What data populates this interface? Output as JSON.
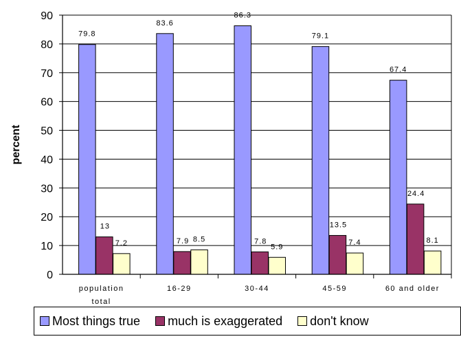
{
  "chart_data": {
    "type": "bar",
    "title": "",
    "xlabel": "",
    "ylabel": "percent",
    "ylim": [
      0,
      90
    ],
    "yticks": [
      0,
      10,
      20,
      30,
      40,
      50,
      60,
      70,
      80,
      90
    ],
    "grid": true,
    "legend_position": "bottom",
    "categories": [
      [
        "population",
        "total"
      ],
      [
        "16-29"
      ],
      [
        "30-44"
      ],
      [
        "45-59"
      ],
      [
        "60 and older"
      ]
    ],
    "series": [
      {
        "name": "Most things true",
        "color": "#9999ff",
        "values": [
          79.8,
          83.6,
          86.3,
          79.1,
          67.4
        ],
        "labels": [
          "79.8",
          "83.6",
          "86.3",
          "79.1",
          "67.4"
        ]
      },
      {
        "name": "much is exaggerated",
        "color": "#993366",
        "values": [
          13,
          7.9,
          7.8,
          13.5,
          24.4
        ],
        "labels": [
          "13",
          "7.9",
          "7.8",
          "13.5",
          "24.4"
        ]
      },
      {
        "name": "don't know",
        "color": "#ffffcc",
        "values": [
          7.2,
          8.5,
          5.9,
          7.4,
          8.1
        ],
        "labels": [
          "7.2",
          "8.5",
          "5.9",
          "7.4",
          "8.1"
        ]
      }
    ]
  }
}
